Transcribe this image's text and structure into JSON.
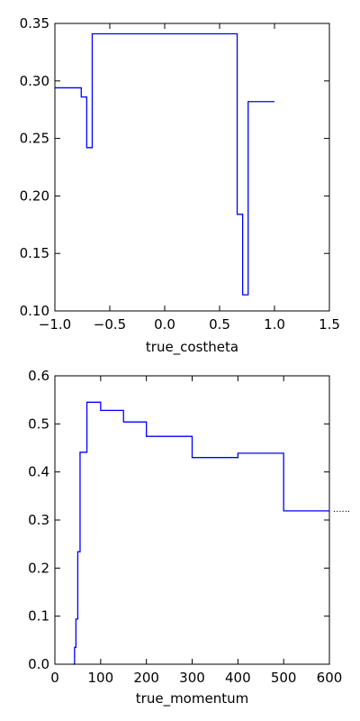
{
  "colors": {
    "line": "#0000ff",
    "axes": "#000000",
    "background": "#ffffff"
  },
  "chart_data": [
    {
      "type": "line",
      "drawstyle": "steps",
      "title": "",
      "xlabel": "true_costheta",
      "ylabel": "",
      "xlim": [
        -1.0,
        1.5
      ],
      "ylim": [
        0.1,
        0.35
      ],
      "xticks": [
        -1.0,
        -0.5,
        0.0,
        0.5,
        1.0,
        1.5
      ],
      "xtick_labels": [
        "−1.0",
        "−0.5",
        "0.0",
        "0.5",
        "1.0",
        "1.5"
      ],
      "yticks": [
        0.1,
        0.15,
        0.2,
        0.25,
        0.3,
        0.35
      ],
      "ytick_labels": [
        "0.10",
        "0.15",
        "0.20",
        "0.25",
        "0.30",
        "0.35"
      ],
      "grid": false,
      "series": [
        {
          "bins": [
            {
              "x0": -1.0,
              "x1": -0.76,
              "y": 0.294
            },
            {
              "x0": -0.76,
              "x1": -0.71,
              "y": 0.286
            },
            {
              "x0": -0.71,
              "x1": -0.66,
              "y": 0.242
            },
            {
              "x0": -0.66,
              "x1": 0.66,
              "y": 0.341
            },
            {
              "x0": 0.66,
              "x1": 0.71,
              "y": 0.184
            },
            {
              "x0": 0.71,
              "x1": 0.76,
              "y": 0.114
            },
            {
              "x0": 0.76,
              "x1": 1.0,
              "y": 0.282
            }
          ]
        }
      ]
    },
    {
      "type": "line",
      "drawstyle": "steps",
      "title": "",
      "xlabel": "true_momentum",
      "ylabel": "",
      "xlim": [
        0,
        600
      ],
      "ylim": [
        0.0,
        0.6
      ],
      "xticks": [
        0,
        100,
        200,
        300,
        400,
        500,
        600
      ],
      "xtick_labels": [
        "0",
        "100",
        "200",
        "300",
        "400",
        "500",
        "600"
      ],
      "yticks": [
        0.0,
        0.1,
        0.2,
        0.3,
        0.4,
        0.5,
        0.6
      ],
      "ytick_labels": [
        "0.0",
        "0.1",
        "0.2",
        "0.3",
        "0.4",
        "0.5",
        "0.6"
      ],
      "grid": false,
      "overflow_marker": "······",
      "series": [
        {
          "bins": [
            {
              "x0": 40,
              "x1": 43,
              "y": 0.0
            },
            {
              "x0": 43,
              "x1": 46,
              "y": 0.035
            },
            {
              "x0": 46,
              "x1": 50,
              "y": 0.094
            },
            {
              "x0": 50,
              "x1": 55,
              "y": 0.234
            },
            {
              "x0": 55,
              "x1": 70,
              "y": 0.441
            },
            {
              "x0": 70,
              "x1": 100,
              "y": 0.545
            },
            {
              "x0": 100,
              "x1": 150,
              "y": 0.528
            },
            {
              "x0": 150,
              "x1": 200,
              "y": 0.504
            },
            {
              "x0": 200,
              "x1": 300,
              "y": 0.474
            },
            {
              "x0": 300,
              "x1": 400,
              "y": 0.43
            },
            {
              "x0": 400,
              "x1": 500,
              "y": 0.439
            },
            {
              "x0": 500,
              "x1": 600,
              "y": 0.319
            }
          ]
        }
      ]
    }
  ]
}
